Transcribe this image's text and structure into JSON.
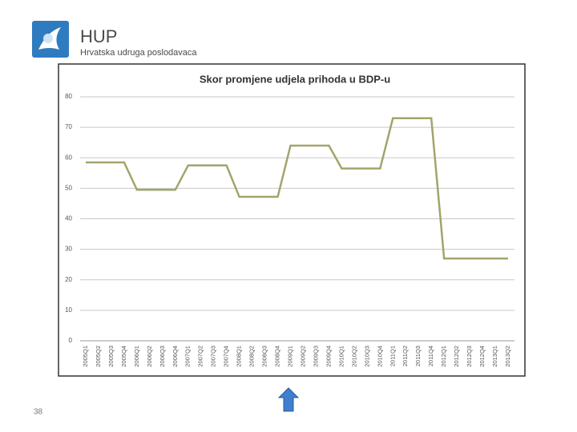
{
  "header": {
    "logo": "HUP",
    "subtitle": "Hrvatska udruga poslodavaca"
  },
  "slide_number": "38",
  "chart_data": {
    "type": "line",
    "title": "Skor promjene udjela prihoda u BDP-u",
    "categories": [
      "2005Q1",
      "2005Q2",
      "2005Q3",
      "2005Q4",
      "2006Q1",
      "2006Q2",
      "2006Q3",
      "2006Q4",
      "2007Q1",
      "2007Q2",
      "2007Q3",
      "2007Q4",
      "2008Q1",
      "2008Q2",
      "2008Q3",
      "2008Q4",
      "2009Q1",
      "2009Q2",
      "2009Q3",
      "2009Q4",
      "2010Q1",
      "2010Q2",
      "2010Q3",
      "2010Q4",
      "2011Q1",
      "2011Q2",
      "2011Q3",
      "2011Q4",
      "2012Q1",
      "2012Q2",
      "2012Q3",
      "2012Q4",
      "2013Q1",
      "2013Q2"
    ],
    "values": [
      58.5,
      58.5,
      58.5,
      58.5,
      49.5,
      49.5,
      49.5,
      49.5,
      57.5,
      57.5,
      57.5,
      57.5,
      47.2,
      47.2,
      47.2,
      47.2,
      64,
      64,
      64,
      64,
      56.5,
      56.5,
      56.5,
      56.5,
      73,
      73,
      73,
      73,
      27,
      27,
      27,
      27,
      27,
      27
    ],
    "color": "#a3a46c",
    "ylim": [
      0,
      80
    ],
    "yticks": [
      0,
      10,
      20,
      30,
      40,
      50,
      60,
      70,
      80
    ],
    "grid": true
  }
}
